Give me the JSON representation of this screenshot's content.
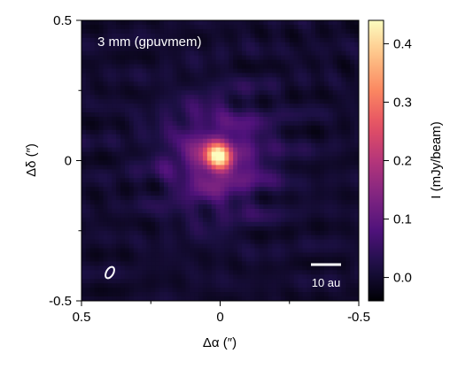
{
  "chart_data": {
    "type": "heatmap",
    "panel_label": "3 mm (gpuvmem)",
    "xlabel": "Δα (″)",
    "ylabel": "Δδ (″)",
    "xlim": [
      0.5,
      -0.5
    ],
    "ylim": [
      -0.5,
      0.5
    ],
    "x_ticks": [
      {
        "value": 0.5,
        "label": "0.5"
      },
      {
        "value": 0,
        "label": "0"
      },
      {
        "value": -0.5,
        "label": "-0.5"
      }
    ],
    "y_ticks": [
      {
        "value": 0.5,
        "label": "0.5"
      },
      {
        "value": 0,
        "label": "0"
      },
      {
        "value": -0.5,
        "label": "-0.5"
      }
    ],
    "colorbar": {
      "label": "I (mJy/beam)",
      "range": [
        -0.04,
        0.44
      ],
      "colormap": "magma",
      "ticks": [
        {
          "value": 0.0,
          "label": "0.0"
        },
        {
          "value": 0.1,
          "label": "0.1"
        },
        {
          "value": 0.2,
          "label": "0.2"
        },
        {
          "value": 0.3,
          "label": "0.3"
        },
        {
          "value": 0.4,
          "label": "0.4"
        }
      ]
    },
    "source": {
      "center_x": 0.01,
      "center_y": 0.01,
      "peak": 0.44,
      "core_sigma": 0.035,
      "halo_sigma": 0.13,
      "halo_amplitude": 0.13,
      "background_noise": 0.02
    },
    "scale_bar": {
      "label": "10 au",
      "length_arcsec": 0.1
    },
    "beam_shape": {
      "major_arcsec": 0.045,
      "minor_arcsec": 0.025,
      "angle_deg": 30
    }
  },
  "colors": {
    "annotation": "#ffffff",
    "colormap_stops": [
      "#000004",
      "#1c1044",
      "#4f127b",
      "#812581",
      "#b5367a",
      "#e55064",
      "#fb8761",
      "#fec287",
      "#fcfdbf"
    ]
  }
}
